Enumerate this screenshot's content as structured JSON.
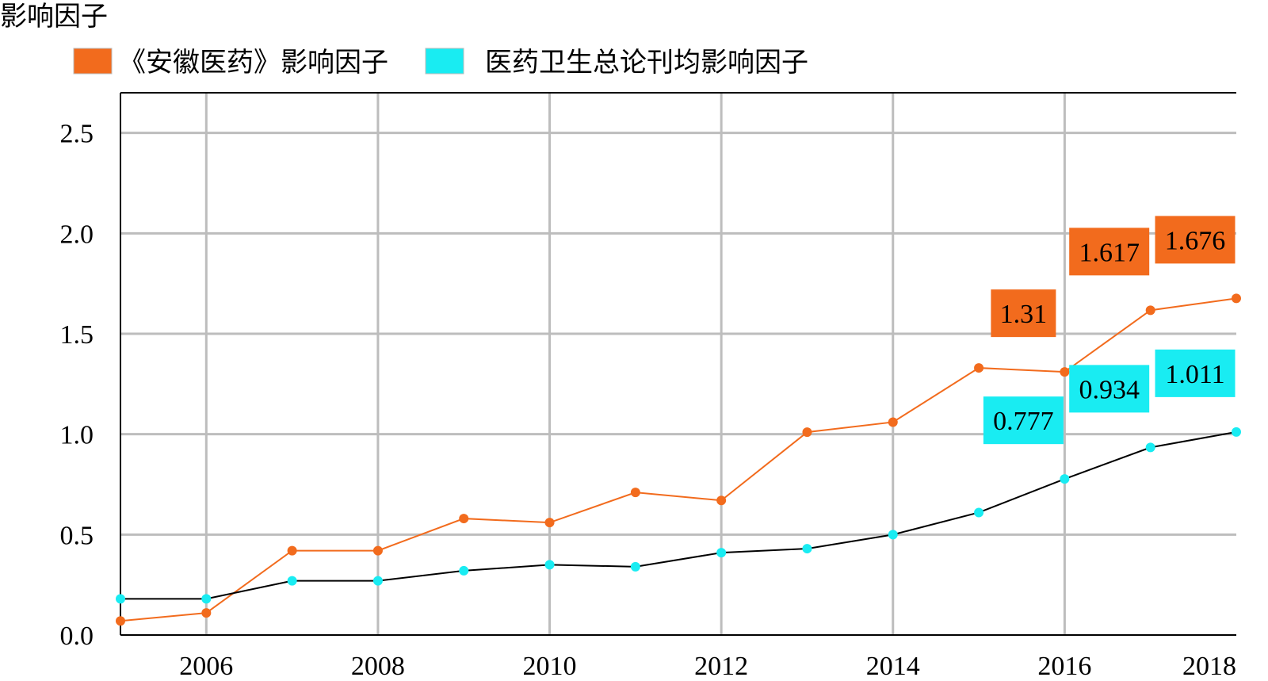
{
  "chart_data": {
    "type": "line",
    "ylabel": "影响因子",
    "xlim": [
      2005,
      2018
    ],
    "ylim": [
      0,
      2.7
    ],
    "x_ticks": [
      "2006",
      "2008",
      "2010",
      "2012",
      "2014",
      "2016",
      "2018"
    ],
    "y_ticks": [
      "0.0",
      "0.5",
      "1.0",
      "1.5",
      "2.0",
      "2.5"
    ],
    "grid": true,
    "legend_position": "top-left",
    "x": [
      2005,
      2006,
      2007,
      2008,
      2009,
      2010,
      2011,
      2012,
      2013,
      2014,
      2015,
      2016,
      2017,
      2018
    ],
    "series": [
      {
        "name": "《安徽医药》影响因子",
        "color": "#f26b1d",
        "line_color": "#f26b1d",
        "values": [
          0.07,
          0.11,
          0.42,
          0.42,
          0.58,
          0.56,
          0.71,
          0.67,
          1.01,
          1.06,
          1.33,
          1.31,
          1.617,
          1.676
        ],
        "labels": [
          {
            "index": 11,
            "text": "1.31"
          },
          {
            "index": 12,
            "text": "1.617"
          },
          {
            "index": 13,
            "text": "1.676"
          }
        ]
      },
      {
        "name": "医药卫生总论刊均影响因子",
        "color": "#19ecf2",
        "line_color": "#000000",
        "values": [
          0.18,
          0.18,
          0.27,
          0.27,
          0.32,
          0.35,
          0.34,
          0.41,
          0.43,
          0.5,
          0.61,
          0.777,
          0.934,
          1.011
        ],
        "labels": [
          {
            "index": 11,
            "text": "0.777"
          },
          {
            "index": 12,
            "text": "0.934"
          },
          {
            "index": 13,
            "text": "1.011"
          }
        ]
      }
    ]
  }
}
